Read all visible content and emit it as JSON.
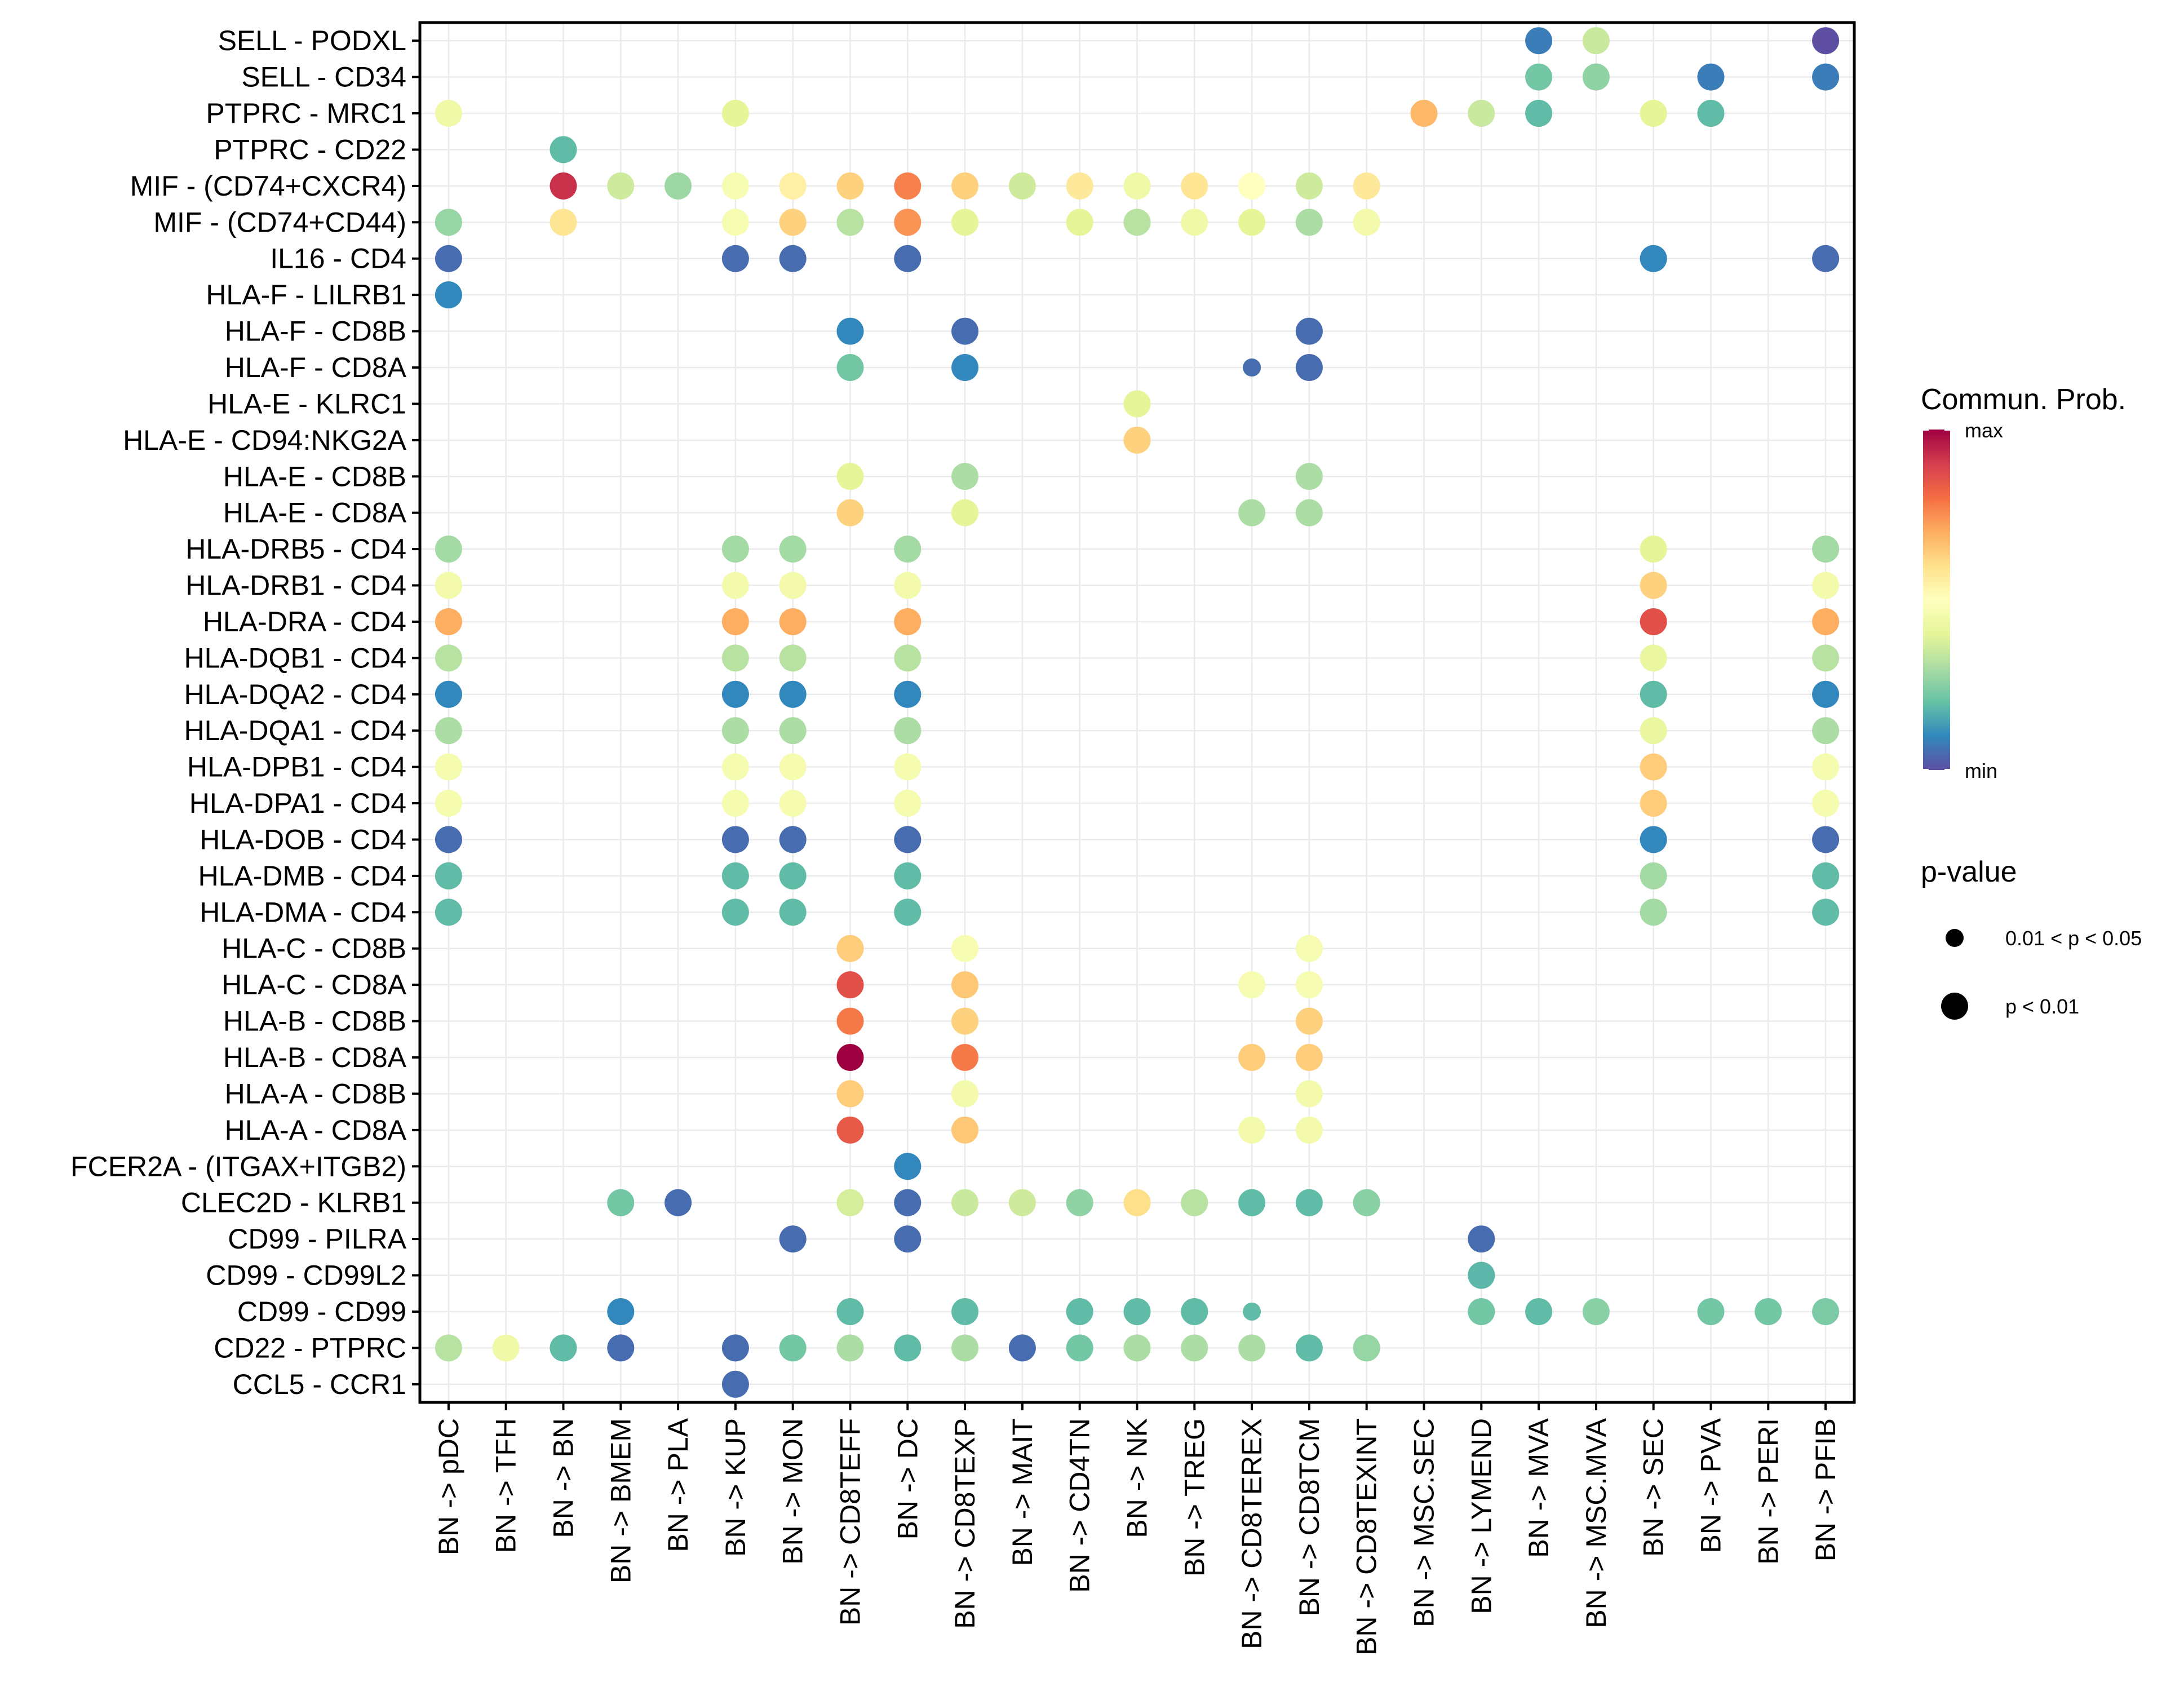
{
  "chart_data": {
    "type": "scatter",
    "subtype": "dot-plot",
    "title": "",
    "xlabel": "",
    "ylabel": "",
    "grid": true,
    "x_categories": [
      "BN -> pDC",
      "BN -> TFH",
      "BN -> BN",
      "BN -> BMEM",
      "BN -> PLA",
      "BN -> KUP",
      "BN -> MON",
      "BN -> CD8TEFF",
      "BN -> DC",
      "BN -> CD8TEXP",
      "BN -> MAIT",
      "BN -> CD4TN",
      "BN -> NK",
      "BN -> TREG",
      "BN -> CD8TEREX",
      "BN -> CD8TCM",
      "BN -> CD8TEXINT",
      "BN -> MSC.SEC",
      "BN -> LYMEND",
      "BN -> MVA",
      "BN -> MSC.MVA",
      "BN -> SEC",
      "BN -> PVA",
      "BN -> PERI",
      "BN -> PFIB"
    ],
    "y_categories": [
      "SELL - PODXL",
      "SELL - CD34",
      "PTPRC - MRC1",
      "PTPRC - CD22",
      "MIF - (CD74+CXCR4)",
      "MIF - (CD74+CD44)",
      "IL16 - CD4",
      "HLA-F - LILRB1",
      "HLA-F - CD8B",
      "HLA-F - CD8A",
      "HLA-E - KLRC1",
      "HLA-E - CD94:NKG2A",
      "HLA-E - CD8B",
      "HLA-E - CD8A",
      "HLA-DRB5 - CD4",
      "HLA-DRB1 - CD4",
      "HLA-DRA - CD4",
      "HLA-DQB1 - CD4",
      "HLA-DQA2 - CD4",
      "HLA-DQA1 - CD4",
      "HLA-DPB1 - CD4",
      "HLA-DPA1 - CD4",
      "HLA-DOB - CD4",
      "HLA-DMB - CD4",
      "HLA-DMA - CD4",
      "HLA-C - CD8B",
      "HLA-C - CD8A",
      "HLA-B - CD8B",
      "HLA-B - CD8A",
      "HLA-A - CD8B",
      "HLA-A - CD8A",
      "FCER2A - (ITGAX+ITGB2)",
      "CLEC2D - KLRB1",
      "CD99 - PILRA",
      "CD99 - CD99L2",
      "CD99 - CD99",
      "CD22 - PTPRC",
      "CCL5 - CCR1"
    ],
    "value_scale": "normalized commun. prob. (0 = min, 1 = max)",
    "pvalue_codes": {
      "1": "p < 0.01",
      "2": "0.01 < p < 0.05"
    },
    "points": [
      {
        "y": 0,
        "x": 19,
        "v": 0.08,
        "p": 1
      },
      {
        "y": 0,
        "x": 20,
        "v": 0.35,
        "p": 1
      },
      {
        "y": 0,
        "x": 24,
        "v": 0.0,
        "p": 1
      },
      {
        "y": 1,
        "x": 19,
        "v": 0.22,
        "p": 1
      },
      {
        "y": 1,
        "x": 20,
        "v": 0.26,
        "p": 1
      },
      {
        "y": 1,
        "x": 22,
        "v": 0.08,
        "p": 1
      },
      {
        "y": 1,
        "x": 24,
        "v": 0.08,
        "p": 1
      },
      {
        "y": 2,
        "x": 0,
        "v": 0.44,
        "p": 1
      },
      {
        "y": 2,
        "x": 5,
        "v": 0.4,
        "p": 1
      },
      {
        "y": 2,
        "x": 17,
        "v": 0.68,
        "p": 1
      },
      {
        "y": 2,
        "x": 18,
        "v": 0.35,
        "p": 1
      },
      {
        "y": 2,
        "x": 19,
        "v": 0.19,
        "p": 1
      },
      {
        "y": 2,
        "x": 21,
        "v": 0.4,
        "p": 1
      },
      {
        "y": 2,
        "x": 22,
        "v": 0.19,
        "p": 1
      },
      {
        "y": 3,
        "x": 2,
        "v": 0.19,
        "p": 1
      },
      {
        "y": 4,
        "x": 2,
        "v": 0.92,
        "p": 1
      },
      {
        "y": 4,
        "x": 3,
        "v": 0.36,
        "p": 1
      },
      {
        "y": 4,
        "x": 4,
        "v": 0.28,
        "p": 1
      },
      {
        "y": 4,
        "x": 5,
        "v": 0.47,
        "p": 1
      },
      {
        "y": 4,
        "x": 6,
        "v": 0.55,
        "p": 1
      },
      {
        "y": 4,
        "x": 7,
        "v": 0.63,
        "p": 1
      },
      {
        "y": 4,
        "x": 8,
        "v": 0.77,
        "p": 1
      },
      {
        "y": 4,
        "x": 9,
        "v": 0.63,
        "p": 1
      },
      {
        "y": 4,
        "x": 10,
        "v": 0.36,
        "p": 1
      },
      {
        "y": 4,
        "x": 11,
        "v": 0.57,
        "p": 1
      },
      {
        "y": 4,
        "x": 12,
        "v": 0.44,
        "p": 1
      },
      {
        "y": 4,
        "x": 13,
        "v": 0.58,
        "p": 1
      },
      {
        "y": 4,
        "x": 14,
        "v": 0.5,
        "p": 1
      },
      {
        "y": 4,
        "x": 15,
        "v": 0.36,
        "p": 1
      },
      {
        "y": 4,
        "x": 16,
        "v": 0.57,
        "p": 1
      },
      {
        "y": 5,
        "x": 0,
        "v": 0.27,
        "p": 1
      },
      {
        "y": 5,
        "x": 2,
        "v": 0.58,
        "p": 1
      },
      {
        "y": 5,
        "x": 5,
        "v": 0.47,
        "p": 1
      },
      {
        "y": 5,
        "x": 6,
        "v": 0.63,
        "p": 1
      },
      {
        "y": 5,
        "x": 7,
        "v": 0.32,
        "p": 1
      },
      {
        "y": 5,
        "x": 8,
        "v": 0.74,
        "p": 1
      },
      {
        "y": 5,
        "x": 9,
        "v": 0.4,
        "p": 1
      },
      {
        "y": 5,
        "x": 11,
        "v": 0.4,
        "p": 1
      },
      {
        "y": 5,
        "x": 12,
        "v": 0.32,
        "p": 1
      },
      {
        "y": 5,
        "x": 13,
        "v": 0.44,
        "p": 1
      },
      {
        "y": 5,
        "x": 14,
        "v": 0.4,
        "p": 1
      },
      {
        "y": 5,
        "x": 15,
        "v": 0.3,
        "p": 1
      },
      {
        "y": 5,
        "x": 16,
        "v": 0.45,
        "p": 1
      },
      {
        "y": 6,
        "x": 0,
        "v": 0.05,
        "p": 1
      },
      {
        "y": 6,
        "x": 5,
        "v": 0.05,
        "p": 1
      },
      {
        "y": 6,
        "x": 6,
        "v": 0.05,
        "p": 1
      },
      {
        "y": 6,
        "x": 8,
        "v": 0.05,
        "p": 1
      },
      {
        "y": 6,
        "x": 21,
        "v": 0.1,
        "p": 1
      },
      {
        "y": 6,
        "x": 24,
        "v": 0.05,
        "p": 1
      },
      {
        "y": 7,
        "x": 0,
        "v": 0.1,
        "p": 1
      },
      {
        "y": 8,
        "x": 7,
        "v": 0.1,
        "p": 1
      },
      {
        "y": 8,
        "x": 9,
        "v": 0.05,
        "p": 1
      },
      {
        "y": 8,
        "x": 15,
        "v": 0.05,
        "p": 1
      },
      {
        "y": 9,
        "x": 7,
        "v": 0.22,
        "p": 1
      },
      {
        "y": 9,
        "x": 9,
        "v": 0.1,
        "p": 1
      },
      {
        "y": 9,
        "x": 14,
        "v": 0.05,
        "p": 2
      },
      {
        "y": 9,
        "x": 15,
        "v": 0.05,
        "p": 1
      },
      {
        "y": 10,
        "x": 12,
        "v": 0.4,
        "p": 1
      },
      {
        "y": 11,
        "x": 12,
        "v": 0.63,
        "p": 1
      },
      {
        "y": 12,
        "x": 7,
        "v": 0.4,
        "p": 1
      },
      {
        "y": 12,
        "x": 9,
        "v": 0.3,
        "p": 1
      },
      {
        "y": 12,
        "x": 15,
        "v": 0.3,
        "p": 1
      },
      {
        "y": 13,
        "x": 7,
        "v": 0.63,
        "p": 1
      },
      {
        "y": 13,
        "x": 9,
        "v": 0.4,
        "p": 1
      },
      {
        "y": 13,
        "x": 14,
        "v": 0.3,
        "p": 1
      },
      {
        "y": 13,
        "x": 15,
        "v": 0.3,
        "p": 1
      },
      {
        "y": 14,
        "x": 0,
        "v": 0.29,
        "p": 1
      },
      {
        "y": 14,
        "x": 5,
        "v": 0.29,
        "p": 1
      },
      {
        "y": 14,
        "x": 6,
        "v": 0.29,
        "p": 1
      },
      {
        "y": 14,
        "x": 8,
        "v": 0.29,
        "p": 1
      },
      {
        "y": 14,
        "x": 21,
        "v": 0.4,
        "p": 1
      },
      {
        "y": 14,
        "x": 24,
        "v": 0.29,
        "p": 1
      },
      {
        "y": 15,
        "x": 0,
        "v": 0.45,
        "p": 1
      },
      {
        "y": 15,
        "x": 5,
        "v": 0.45,
        "p": 1
      },
      {
        "y": 15,
        "x": 6,
        "v": 0.45,
        "p": 1
      },
      {
        "y": 15,
        "x": 8,
        "v": 0.45,
        "p": 1
      },
      {
        "y": 15,
        "x": 21,
        "v": 0.63,
        "p": 1
      },
      {
        "y": 15,
        "x": 24,
        "v": 0.45,
        "p": 1
      },
      {
        "y": 16,
        "x": 0,
        "v": 0.7,
        "p": 1
      },
      {
        "y": 16,
        "x": 5,
        "v": 0.7,
        "p": 1
      },
      {
        "y": 16,
        "x": 6,
        "v": 0.7,
        "p": 1
      },
      {
        "y": 16,
        "x": 8,
        "v": 0.7,
        "p": 1
      },
      {
        "y": 16,
        "x": 21,
        "v": 0.86,
        "p": 1
      },
      {
        "y": 16,
        "x": 24,
        "v": 0.7,
        "p": 1
      },
      {
        "y": 17,
        "x": 0,
        "v": 0.32,
        "p": 1
      },
      {
        "y": 17,
        "x": 5,
        "v": 0.32,
        "p": 1
      },
      {
        "y": 17,
        "x": 6,
        "v": 0.32,
        "p": 1
      },
      {
        "y": 17,
        "x": 8,
        "v": 0.32,
        "p": 1
      },
      {
        "y": 17,
        "x": 21,
        "v": 0.42,
        "p": 1
      },
      {
        "y": 17,
        "x": 24,
        "v": 0.32,
        "p": 1
      },
      {
        "y": 18,
        "x": 0,
        "v": 0.1,
        "p": 1
      },
      {
        "y": 18,
        "x": 5,
        "v": 0.1,
        "p": 1
      },
      {
        "y": 18,
        "x": 6,
        "v": 0.1,
        "p": 1
      },
      {
        "y": 18,
        "x": 8,
        "v": 0.1,
        "p": 1
      },
      {
        "y": 18,
        "x": 21,
        "v": 0.19,
        "p": 1
      },
      {
        "y": 18,
        "x": 24,
        "v": 0.1,
        "p": 1
      },
      {
        "y": 19,
        "x": 0,
        "v": 0.3,
        "p": 1
      },
      {
        "y": 19,
        "x": 5,
        "v": 0.3,
        "p": 1
      },
      {
        "y": 19,
        "x": 6,
        "v": 0.3,
        "p": 1
      },
      {
        "y": 19,
        "x": 8,
        "v": 0.3,
        "p": 1
      },
      {
        "y": 19,
        "x": 21,
        "v": 0.42,
        "p": 1
      },
      {
        "y": 19,
        "x": 24,
        "v": 0.3,
        "p": 1
      },
      {
        "y": 20,
        "x": 0,
        "v": 0.46,
        "p": 1
      },
      {
        "y": 20,
        "x": 5,
        "v": 0.46,
        "p": 1
      },
      {
        "y": 20,
        "x": 6,
        "v": 0.46,
        "p": 1
      },
      {
        "y": 20,
        "x": 8,
        "v": 0.46,
        "p": 1
      },
      {
        "y": 20,
        "x": 21,
        "v": 0.64,
        "p": 1
      },
      {
        "y": 20,
        "x": 24,
        "v": 0.46,
        "p": 1
      },
      {
        "y": 21,
        "x": 0,
        "v": 0.46,
        "p": 1
      },
      {
        "y": 21,
        "x": 5,
        "v": 0.46,
        "p": 1
      },
      {
        "y": 21,
        "x": 6,
        "v": 0.46,
        "p": 1
      },
      {
        "y": 21,
        "x": 8,
        "v": 0.46,
        "p": 1
      },
      {
        "y": 21,
        "x": 21,
        "v": 0.64,
        "p": 1
      },
      {
        "y": 21,
        "x": 24,
        "v": 0.46,
        "p": 1
      },
      {
        "y": 22,
        "x": 0,
        "v": 0.05,
        "p": 1
      },
      {
        "y": 22,
        "x": 5,
        "v": 0.05,
        "p": 1
      },
      {
        "y": 22,
        "x": 6,
        "v": 0.05,
        "p": 1
      },
      {
        "y": 22,
        "x": 8,
        "v": 0.05,
        "p": 1
      },
      {
        "y": 22,
        "x": 21,
        "v": 0.1,
        "p": 1
      },
      {
        "y": 22,
        "x": 24,
        "v": 0.05,
        "p": 1
      },
      {
        "y": 23,
        "x": 0,
        "v": 0.19,
        "p": 1
      },
      {
        "y": 23,
        "x": 5,
        "v": 0.19,
        "p": 1
      },
      {
        "y": 23,
        "x": 6,
        "v": 0.19,
        "p": 1
      },
      {
        "y": 23,
        "x": 8,
        "v": 0.19,
        "p": 1
      },
      {
        "y": 23,
        "x": 21,
        "v": 0.29,
        "p": 1
      },
      {
        "y": 23,
        "x": 24,
        "v": 0.19,
        "p": 1
      },
      {
        "y": 24,
        "x": 0,
        "v": 0.19,
        "p": 1
      },
      {
        "y": 24,
        "x": 5,
        "v": 0.19,
        "p": 1
      },
      {
        "y": 24,
        "x": 6,
        "v": 0.19,
        "p": 1
      },
      {
        "y": 24,
        "x": 8,
        "v": 0.19,
        "p": 1
      },
      {
        "y": 24,
        "x": 21,
        "v": 0.29,
        "p": 1
      },
      {
        "y": 24,
        "x": 24,
        "v": 0.19,
        "p": 1
      },
      {
        "y": 25,
        "x": 7,
        "v": 0.64,
        "p": 1
      },
      {
        "y": 25,
        "x": 9,
        "v": 0.47,
        "p": 1
      },
      {
        "y": 25,
        "x": 15,
        "v": 0.47,
        "p": 1
      },
      {
        "y": 26,
        "x": 7,
        "v": 0.86,
        "p": 1
      },
      {
        "y": 26,
        "x": 9,
        "v": 0.65,
        "p": 1
      },
      {
        "y": 26,
        "x": 14,
        "v": 0.47,
        "p": 1
      },
      {
        "y": 26,
        "x": 15,
        "v": 0.47,
        "p": 1
      },
      {
        "y": 27,
        "x": 7,
        "v": 0.78,
        "p": 1
      },
      {
        "y": 27,
        "x": 9,
        "v": 0.63,
        "p": 1
      },
      {
        "y": 27,
        "x": 15,
        "v": 0.63,
        "p": 1
      },
      {
        "y": 28,
        "x": 7,
        "v": 1.0,
        "p": 1
      },
      {
        "y": 28,
        "x": 9,
        "v": 0.78,
        "p": 1
      },
      {
        "y": 28,
        "x": 14,
        "v": 0.64,
        "p": 1
      },
      {
        "y": 28,
        "x": 15,
        "v": 0.64,
        "p": 1
      },
      {
        "y": 29,
        "x": 7,
        "v": 0.64,
        "p": 1
      },
      {
        "y": 29,
        "x": 9,
        "v": 0.45,
        "p": 1
      },
      {
        "y": 29,
        "x": 15,
        "v": 0.45,
        "p": 1
      },
      {
        "y": 30,
        "x": 7,
        "v": 0.84,
        "p": 1
      },
      {
        "y": 30,
        "x": 9,
        "v": 0.65,
        "p": 1
      },
      {
        "y": 30,
        "x": 14,
        "v": 0.45,
        "p": 1
      },
      {
        "y": 30,
        "x": 15,
        "v": 0.45,
        "p": 1
      },
      {
        "y": 31,
        "x": 8,
        "v": 0.1,
        "p": 1
      },
      {
        "y": 32,
        "x": 3,
        "v": 0.22,
        "p": 1
      },
      {
        "y": 32,
        "x": 4,
        "v": 0.05,
        "p": 1
      },
      {
        "y": 32,
        "x": 7,
        "v": 0.37,
        "p": 1
      },
      {
        "y": 32,
        "x": 8,
        "v": 0.05,
        "p": 1
      },
      {
        "y": 32,
        "x": 9,
        "v": 0.35,
        "p": 1
      },
      {
        "y": 32,
        "x": 10,
        "v": 0.36,
        "p": 1
      },
      {
        "y": 32,
        "x": 11,
        "v": 0.26,
        "p": 1
      },
      {
        "y": 32,
        "x": 12,
        "v": 0.6,
        "p": 1
      },
      {
        "y": 32,
        "x": 13,
        "v": 0.32,
        "p": 1
      },
      {
        "y": 32,
        "x": 14,
        "v": 0.19,
        "p": 1
      },
      {
        "y": 32,
        "x": 15,
        "v": 0.19,
        "p": 1
      },
      {
        "y": 32,
        "x": 16,
        "v": 0.25,
        "p": 1
      },
      {
        "y": 33,
        "x": 6,
        "v": 0.05,
        "p": 1
      },
      {
        "y": 33,
        "x": 8,
        "v": 0.05,
        "p": 1
      },
      {
        "y": 33,
        "x": 18,
        "v": 0.05,
        "p": 1
      },
      {
        "y": 34,
        "x": 18,
        "v": 0.18,
        "p": 1
      },
      {
        "y": 35,
        "x": 3,
        "v": 0.1,
        "p": 1
      },
      {
        "y": 35,
        "x": 7,
        "v": 0.19,
        "p": 1
      },
      {
        "y": 35,
        "x": 9,
        "v": 0.19,
        "p": 1
      },
      {
        "y": 35,
        "x": 11,
        "v": 0.19,
        "p": 1
      },
      {
        "y": 35,
        "x": 12,
        "v": 0.19,
        "p": 1
      },
      {
        "y": 35,
        "x": 13,
        "v": 0.19,
        "p": 1
      },
      {
        "y": 35,
        "x": 14,
        "v": 0.19,
        "p": 2
      },
      {
        "y": 35,
        "x": 18,
        "v": 0.22,
        "p": 1
      },
      {
        "y": 35,
        "x": 19,
        "v": 0.19,
        "p": 1
      },
      {
        "y": 35,
        "x": 20,
        "v": 0.25,
        "p": 1
      },
      {
        "y": 35,
        "x": 22,
        "v": 0.22,
        "p": 1
      },
      {
        "y": 35,
        "x": 23,
        "v": 0.22,
        "p": 1
      },
      {
        "y": 35,
        "x": 24,
        "v": 0.23,
        "p": 1
      },
      {
        "y": 36,
        "x": 0,
        "v": 0.32,
        "p": 1
      },
      {
        "y": 36,
        "x": 1,
        "v": 0.44,
        "p": 1
      },
      {
        "y": 36,
        "x": 2,
        "v": 0.19,
        "p": 1
      },
      {
        "y": 36,
        "x": 3,
        "v": 0.05,
        "p": 1
      },
      {
        "y": 36,
        "x": 5,
        "v": 0.05,
        "p": 1
      },
      {
        "y": 36,
        "x": 6,
        "v": 0.22,
        "p": 1
      },
      {
        "y": 36,
        "x": 7,
        "v": 0.3,
        "p": 1
      },
      {
        "y": 36,
        "x": 8,
        "v": 0.19,
        "p": 1
      },
      {
        "y": 36,
        "x": 9,
        "v": 0.3,
        "p": 1
      },
      {
        "y": 36,
        "x": 10,
        "v": 0.05,
        "p": 1
      },
      {
        "y": 36,
        "x": 11,
        "v": 0.22,
        "p": 1
      },
      {
        "y": 36,
        "x": 12,
        "v": 0.3,
        "p": 1
      },
      {
        "y": 36,
        "x": 13,
        "v": 0.3,
        "p": 1
      },
      {
        "y": 36,
        "x": 14,
        "v": 0.3,
        "p": 1
      },
      {
        "y": 36,
        "x": 15,
        "v": 0.19,
        "p": 1
      },
      {
        "y": 36,
        "x": 16,
        "v": 0.27,
        "p": 1
      },
      {
        "y": 37,
        "x": 5,
        "v": 0.05,
        "p": 1
      }
    ],
    "legend": {
      "color": {
        "title": "Commun. Prob.",
        "max_label": "max",
        "min_label": "min",
        "palette": [
          "#5E4FA2",
          "#3288BD",
          "#66C2A5",
          "#ABDDA4",
          "#E6F598",
          "#FFFFBF",
          "#FEE08B",
          "#FDAE61",
          "#F46D43",
          "#D53E4F",
          "#9E0142"
        ]
      },
      "size": {
        "title": "p-value",
        "items": [
          "0.01 < p < 0.05",
          "p < 0.01"
        ]
      },
      "placement": "right"
    }
  }
}
